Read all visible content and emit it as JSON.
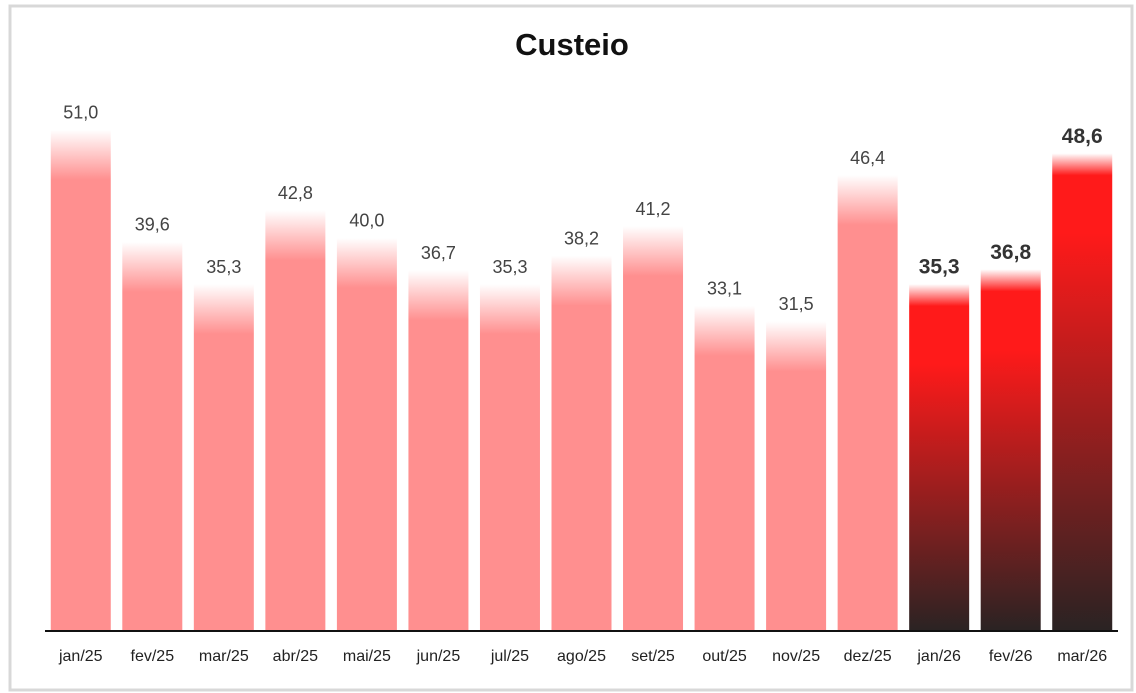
{
  "chart_data": {
    "type": "bar",
    "title": "Custeio",
    "categories": [
      "jan/25",
      "fev/25",
      "mar/25",
      "abr/25",
      "mai/25",
      "jun/25",
      "jul/25",
      "ago/25",
      "set/25",
      "out/25",
      "nov/25",
      "dez/25",
      "jan/26",
      "fev/26",
      "mar/26"
    ],
    "values": [
      51.0,
      39.6,
      35.3,
      42.8,
      40.0,
      36.7,
      35.3,
      38.2,
      41.2,
      33.1,
      31.5,
      46.4,
      35.3,
      36.8,
      48.6
    ],
    "value_labels": [
      "51,0",
      "39,6",
      "35,3",
      "42,8",
      "40,0",
      "36,7",
      "35,3",
      "38,2",
      "41,2",
      "33,1",
      "31,5",
      "46,4",
      "35,3",
      "36,8",
      "48,6"
    ],
    "colors": [
      "#ff8f8f",
      "#ff8f8f",
      "#ff8f8f",
      "#ff8f8f",
      "#ff8f8f",
      "#ff8f8f",
      "#ff8f8f",
      "#ff8f8f",
      "#ff8f8f",
      "#ff8f8f",
      "#ff8f8f",
      "#ff8f8f",
      "#ff1a1a",
      "#ff1a1a",
      "#ff1a1a"
    ],
    "bold_labels": [
      false,
      false,
      false,
      false,
      false,
      false,
      false,
      false,
      false,
      false,
      false,
      false,
      true,
      true,
      true
    ],
    "ylim": [
      0,
      58
    ]
  }
}
